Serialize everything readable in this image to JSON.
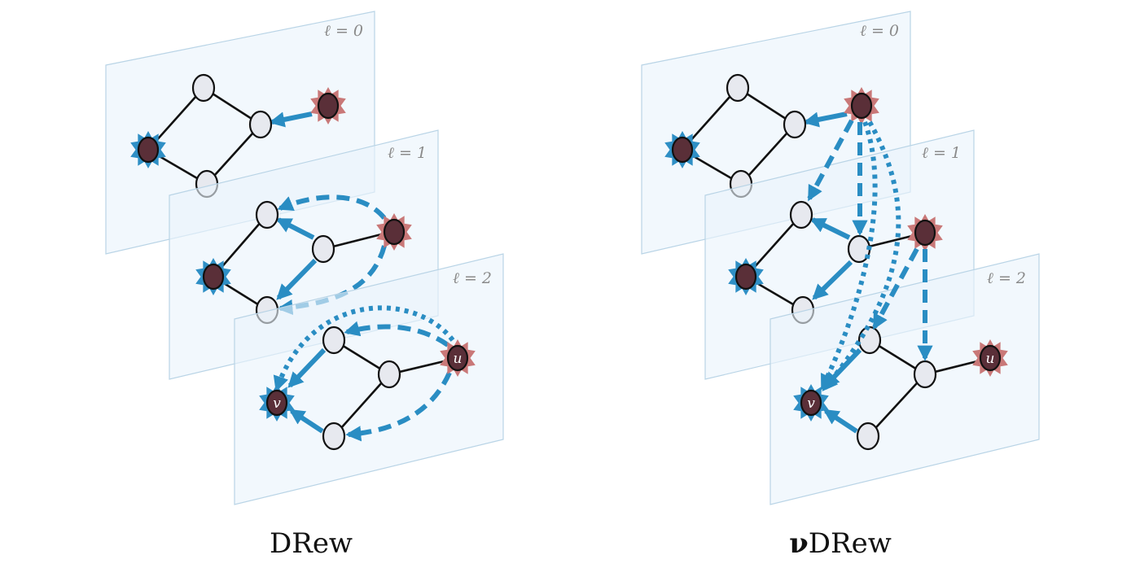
{
  "panels": [
    {
      "caption_prefix": "",
      "caption": "DRew",
      "layer_labels": [
        "ℓ = 0",
        "ℓ = 1",
        "ℓ = 2"
      ],
      "target_node_label": "v",
      "source_node_label": "u"
    },
    {
      "caption_prefix": "ν",
      "caption": "DRew",
      "layer_labels": [
        "ℓ = 0",
        "ℓ = 1",
        "ℓ = 2"
      ],
      "target_node_label": "v",
      "source_node_label": "u"
    }
  ],
  "colors": {
    "arrow": "#2a8dc3",
    "plane_fill": "#eaf4fb",
    "source_star": "#c97878",
    "target_star": "#2f8fc5",
    "node_fill": "#e7e9ef"
  }
}
